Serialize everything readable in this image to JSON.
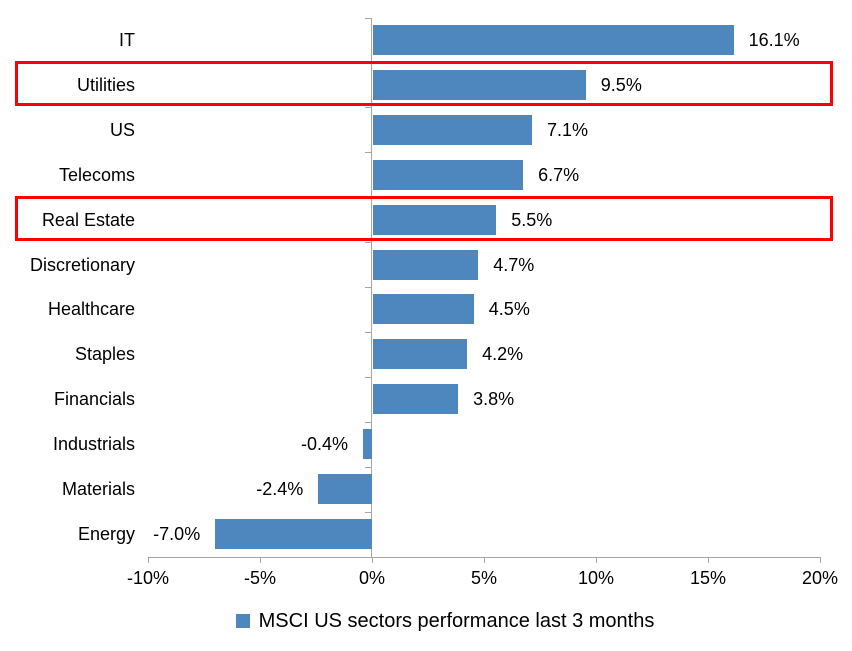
{
  "chart_data": {
    "type": "bar",
    "orientation": "horizontal",
    "title": "",
    "categories": [
      "IT",
      "Utilities",
      "US",
      "Telecoms",
      "Real Estate",
      "Discretionary",
      "Healthcare",
      "Staples",
      "Financials",
      "Industrials",
      "Materials",
      "Energy"
    ],
    "values": [
      16.1,
      9.5,
      7.1,
      6.7,
      5.5,
      4.7,
      4.5,
      4.2,
      3.8,
      -0.4,
      -2.4,
      -7.0
    ],
    "value_labels": [
      "16.1%",
      "9.5%",
      "7.1%",
      "6.7%",
      "5.5%",
      "4.7%",
      "4.5%",
      "4.2%",
      "3.8%",
      "-0.4%",
      "-2.4%",
      "-7.0%"
    ],
    "x_axis": {
      "min": -10,
      "max": 20,
      "tick_step": 5,
      "tick_labels": [
        "-10%",
        "-5%",
        "0%",
        "5%",
        "10%",
        "15%",
        "20%"
      ]
    },
    "grid": false,
    "legend": {
      "label": "MSCI US sectors performance last 3 months",
      "position": "bottom"
    },
    "highlighted_categories": [
      "Utilities",
      "Real Estate"
    ],
    "bar_color": "#4E87BE",
    "highlight_box_color": "#FF0000",
    "axis_color": "#A6A6A6",
    "text_color": "#000000"
  }
}
